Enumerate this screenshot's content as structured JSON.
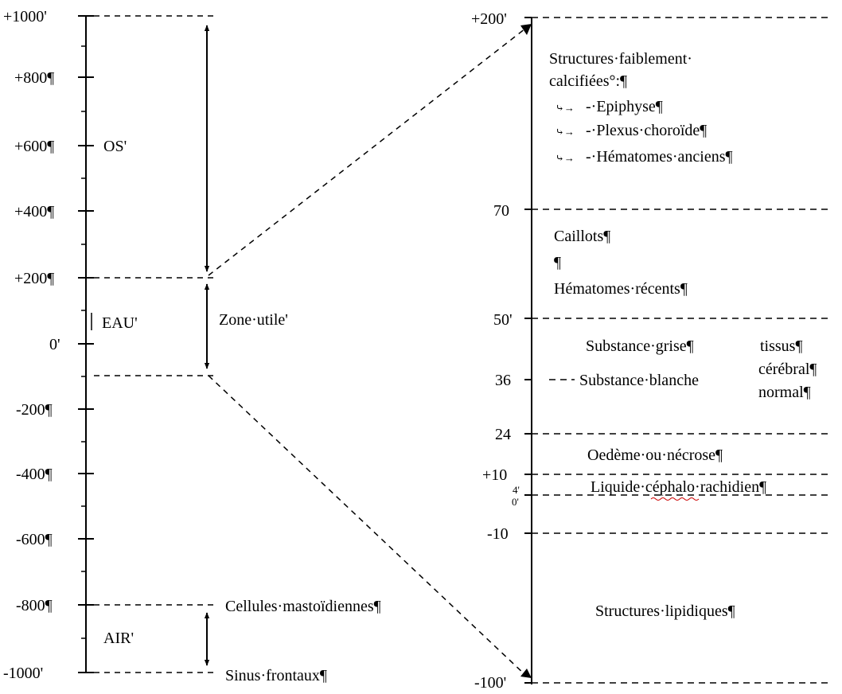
{
  "left_scale": {
    "ticks": [
      "+1000'",
      "+800¶",
      "+600¶",
      "+400¶",
      "+200¶",
      "0'",
      "-200¶",
      "-400¶",
      "-600¶",
      "-800¶",
      "-1000'"
    ],
    "zones": {
      "os": "OS'",
      "eau": "EAU'",
      "zone_utile": "Zone·utile'",
      "air": "AIR'"
    },
    "annotations": {
      "cellules": "Cellules·mastoïdiennes¶",
      "sinus": "Sinus·frontaux¶"
    }
  },
  "right_scale": {
    "ticks": {
      "t200": "+200'",
      "t70": "70",
      "t50": "50'",
      "t36": "36",
      "t24": "24",
      "t10": "+10",
      "t4": "4'",
      "t0": "0'",
      "tm10": "-10",
      "tm100": "-100'"
    },
    "structures": {
      "calcified_title_1": "Structures·faiblement·",
      "calcified_title_2": "calcifiées°:¶",
      "calcified_items": [
        "-·Epiphyse¶",
        "-·Plexus·choroïde¶",
        "-·Hématomes·anciens¶"
      ],
      "tab_marker": "⤷→",
      "caillots": "Caillots¶",
      "pilcrow": "¶",
      "hematomes_recents": "Hématomes·récents¶",
      "substance_grise": "Substance·grise¶",
      "substance_blanche": "Substance·blanche",
      "tissus_1": "tissus¶",
      "tissus_2": "cérébral¶",
      "tissus_3": "normal¶",
      "oedeme": "Oedème·ou·nécrose¶",
      "lcr": "Liquide·céphalo·rachidien¶",
      "lipidiques": "Structures·lipidiques¶"
    }
  },
  "colors": {
    "line": "#000000",
    "background": "#ffffff",
    "spellcheck": "#cc0000"
  }
}
